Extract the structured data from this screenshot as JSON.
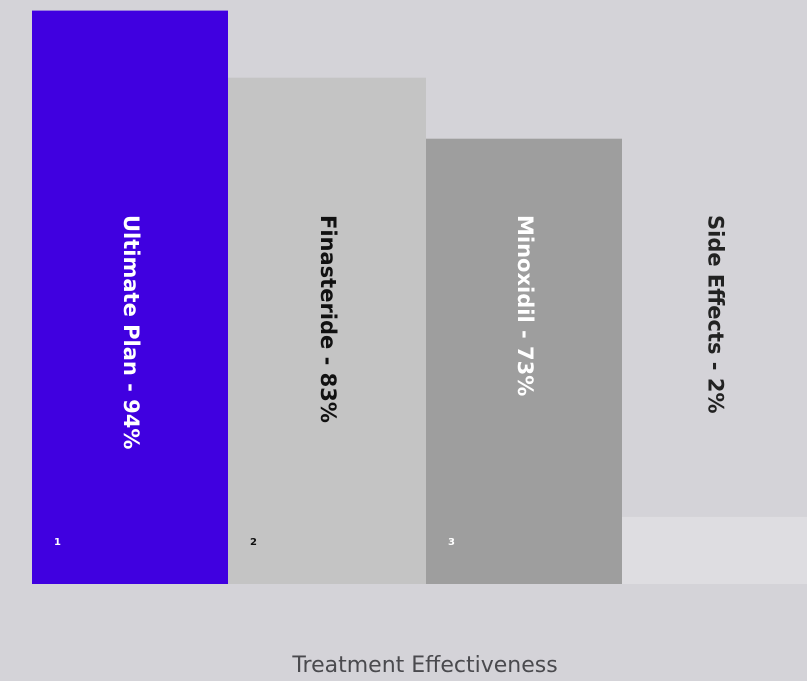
{
  "chart_data": {
    "type": "bar",
    "title": "",
    "xlabel": "Treatment Effectiveness",
    "ylabel": "",
    "ylim": [
      0,
      100
    ],
    "grid": false,
    "legend": "none",
    "bars": [
      {
        "index": "1",
        "label": "Ultimate Plan - 94%",
        "value": 94,
        "color": "#4000e0",
        "text_color": "#ffffff"
      },
      {
        "index": "2",
        "label": "Finasteride - 83%",
        "value": 83,
        "color": "#c4c4c4",
        "text_color": "#111111"
      },
      {
        "index": "3",
        "label": "Minoxidil - 73%",
        "value": 73,
        "color": "#9e9e9e",
        "text_color": "#ffffff"
      },
      {
        "index": "",
        "label": "Side Effects - 2%",
        "value": 2,
        "color": "#dedde1",
        "text_color": "#222222"
      }
    ]
  }
}
